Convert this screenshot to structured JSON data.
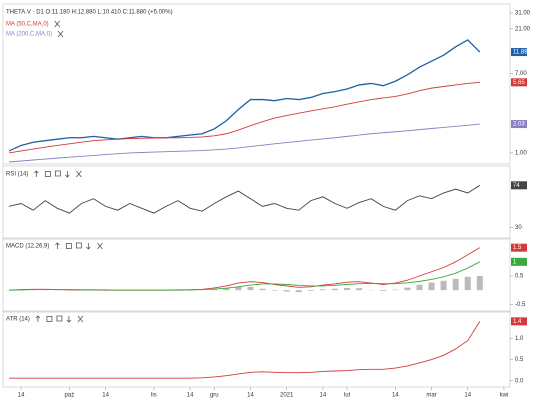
{
  "chart_data": [
    {
      "type": "line",
      "title": "THETA.V · D1  O:11.180  H:12.880  L:10.410  C:11.880 (+5.00%)",
      "log": true,
      "ylim": [
        0.8,
        35
      ],
      "xlim": [
        -0.5,
        41.5
      ],
      "yticks": [
        {
          "value": 31,
          "label": "31.00"
        },
        {
          "value": 21,
          "label": "21.00"
        },
        {
          "value": 7,
          "label": "7.00"
        },
        {
          "value": 1,
          "label": "1.00"
        }
      ],
      "series": [
        {
          "color": "#1f5fa8",
          "tag": true,
          "tag_label": "11.880",
          "values": [
            1.05,
            1.2,
            1.3,
            1.35,
            1.4,
            1.45,
            1.45,
            1.5,
            1.45,
            1.4,
            1.45,
            1.5,
            1.45,
            1.45,
            1.5,
            1.55,
            1.6,
            1.8,
            2.2,
            2.9,
            3.7,
            3.7,
            3.6,
            3.8,
            3.7,
            3.9,
            4.3,
            4.5,
            4.8,
            5.3,
            5.5,
            5.2,
            5.8,
            6.8,
            8.2,
            9.5,
            11,
            13.5,
            16,
            11.88
          ]
        },
        {
          "name": "MA (50,C,MA,0)",
          "color": "#d43a3a",
          "tag": true,
          "values": [
            1.0,
            1.05,
            1.1,
            1.15,
            1.2,
            1.25,
            1.3,
            1.35,
            1.38,
            1.4,
            1.42,
            1.43,
            1.44,
            1.45,
            1.45,
            1.46,
            1.48,
            1.52,
            1.6,
            1.75,
            1.95,
            2.15,
            2.35,
            2.5,
            2.65,
            2.8,
            2.95,
            3.1,
            3.3,
            3.5,
            3.7,
            3.85,
            4.0,
            4.25,
            4.6,
            4.9,
            5.1,
            5.3,
            5.5,
            5.65
          ]
        },
        {
          "name": "MA (200,C,MA,0)",
          "color": "#8a7fc2",
          "tag": true,
          "values": [
            0.8,
            0.82,
            0.84,
            0.86,
            0.88,
            0.9,
            0.92,
            0.94,
            0.96,
            0.98,
            1.0,
            1.01,
            1.02,
            1.03,
            1.04,
            1.05,
            1.06,
            1.08,
            1.1,
            1.13,
            1.17,
            1.21,
            1.25,
            1.29,
            1.33,
            1.37,
            1.41,
            1.45,
            1.5,
            1.55,
            1.6,
            1.64,
            1.68,
            1.72,
            1.77,
            1.82,
            1.87,
            1.92,
            1.97,
            2.03
          ]
        }
      ]
    },
    {
      "type": "line",
      "title": "RSI (14)",
      "ylim": [
        20,
        90
      ],
      "xlim": [
        -0.5,
        41.5
      ],
      "yticks": [
        30
      ],
      "series": [
        {
          "color": "#444444",
          "tag": true,
          "values": [
            52,
            55,
            48,
            58,
            50,
            45,
            55,
            60,
            52,
            48,
            55,
            50,
            45,
            52,
            58,
            50,
            47,
            55,
            62,
            68,
            60,
            52,
            55,
            50,
            48,
            58,
            62,
            55,
            50,
            56,
            60,
            52,
            48,
            58,
            63,
            60,
            66,
            70,
            66,
            74
          ]
        }
      ]
    },
    {
      "type": "line",
      "title": "MACD (12,26,9)",
      "ylim": [
        -0.7,
        1.7
      ],
      "xlim": [
        -0.5,
        41.5
      ],
      "yticks": [
        {
          "value": 0.5,
          "label": "0.5"
        },
        {
          "value": -0.5,
          "label": "-0.5"
        }
      ],
      "series": [
        {
          "type": "bar",
          "color": "#bbbbbb",
          "values": [
            0,
            0.01,
            0.01,
            0.01,
            0,
            -0.01,
            0,
            0,
            -0.01,
            0,
            0,
            0,
            0,
            0,
            0.01,
            0,
            0.01,
            0.04,
            0.08,
            0.13,
            0.12,
            0.05,
            -0.02,
            -0.05,
            -0.07,
            -0.03,
            0.03,
            0.05,
            0.08,
            0.07,
            0.01,
            -0.03,
            0.02,
            0.09,
            0.19,
            0.27,
            0.33,
            0.4,
            0.47,
            0.5
          ]
        },
        {
          "color": "#d43a3a",
          "tag": true,
          "values": [
            0,
            0.02,
            0.03,
            0.03,
            0.02,
            0.01,
            0.01,
            0.01,
            0,
            0,
            0,
            0,
            0,
            0,
            0.01,
            0.01,
            0.03,
            0.08,
            0.15,
            0.25,
            0.3,
            0.27,
            0.2,
            0.15,
            0.1,
            0.12,
            0.18,
            0.22,
            0.28,
            0.3,
            0.25,
            0.2,
            0.25,
            0.35,
            0.5,
            0.65,
            0.8,
            1.0,
            1.25,
            1.5
          ]
        },
        {
          "color": "#3da83d",
          "tag": true,
          "values": [
            0,
            0.01,
            0.02,
            0.02,
            0.02,
            0.02,
            0.01,
            0.01,
            0.01,
            0,
            0,
            0,
            0,
            0,
            0,
            0.01,
            0.02,
            0.04,
            0.07,
            0.12,
            0.18,
            0.22,
            0.22,
            0.2,
            0.17,
            0.15,
            0.15,
            0.17,
            0.2,
            0.23,
            0.24,
            0.23,
            0.23,
            0.26,
            0.31,
            0.38,
            0.47,
            0.6,
            0.78,
            1
          ]
        }
      ]
    },
    {
      "type": "line",
      "title": "ATR (14)",
      "ylim": [
        -0.1,
        1.55
      ],
      "xlim": [
        -0.5,
        41.5
      ],
      "yticks": [
        {
          "value": 1,
          "label": "1.0"
        },
        {
          "value": 0.5,
          "label": "0.5"
        },
        {
          "value": 0,
          "label": "0.0"
        }
      ],
      "xticks": [
        {
          "value": 1,
          "label": "14"
        },
        {
          "value": 5,
          "label": "paź"
        },
        {
          "value": 8,
          "label": "14"
        },
        {
          "value": 12,
          "label": "lis"
        },
        {
          "value": 15,
          "label": "14"
        },
        {
          "value": 17,
          "label": "gru"
        },
        {
          "value": 20,
          "label": "14"
        },
        {
          "value": 23,
          "label": "2021"
        },
        {
          "value": 26,
          "label": "14"
        },
        {
          "value": 28,
          "label": "lut"
        },
        {
          "value": 32,
          "label": "14"
        },
        {
          "value": 35,
          "label": "mar"
        },
        {
          "value": 38,
          "label": "14"
        },
        {
          "value": 41,
          "label": "kwi"
        }
      ],
      "series": [
        {
          "color": "#d43a3a",
          "tag": true,
          "values": [
            0.06,
            0.06,
            0.06,
            0.06,
            0.06,
            0.06,
            0.06,
            0.06,
            0.06,
            0.06,
            0.06,
            0.06,
            0.06,
            0.06,
            0.06,
            0.06,
            0.07,
            0.09,
            0.12,
            0.16,
            0.2,
            0.21,
            0.2,
            0.19,
            0.19,
            0.2,
            0.22,
            0.23,
            0.24,
            0.26,
            0.27,
            0.27,
            0.3,
            0.35,
            0.42,
            0.5,
            0.6,
            0.75,
            0.95,
            1.4
          ]
        }
      ]
    }
  ]
}
